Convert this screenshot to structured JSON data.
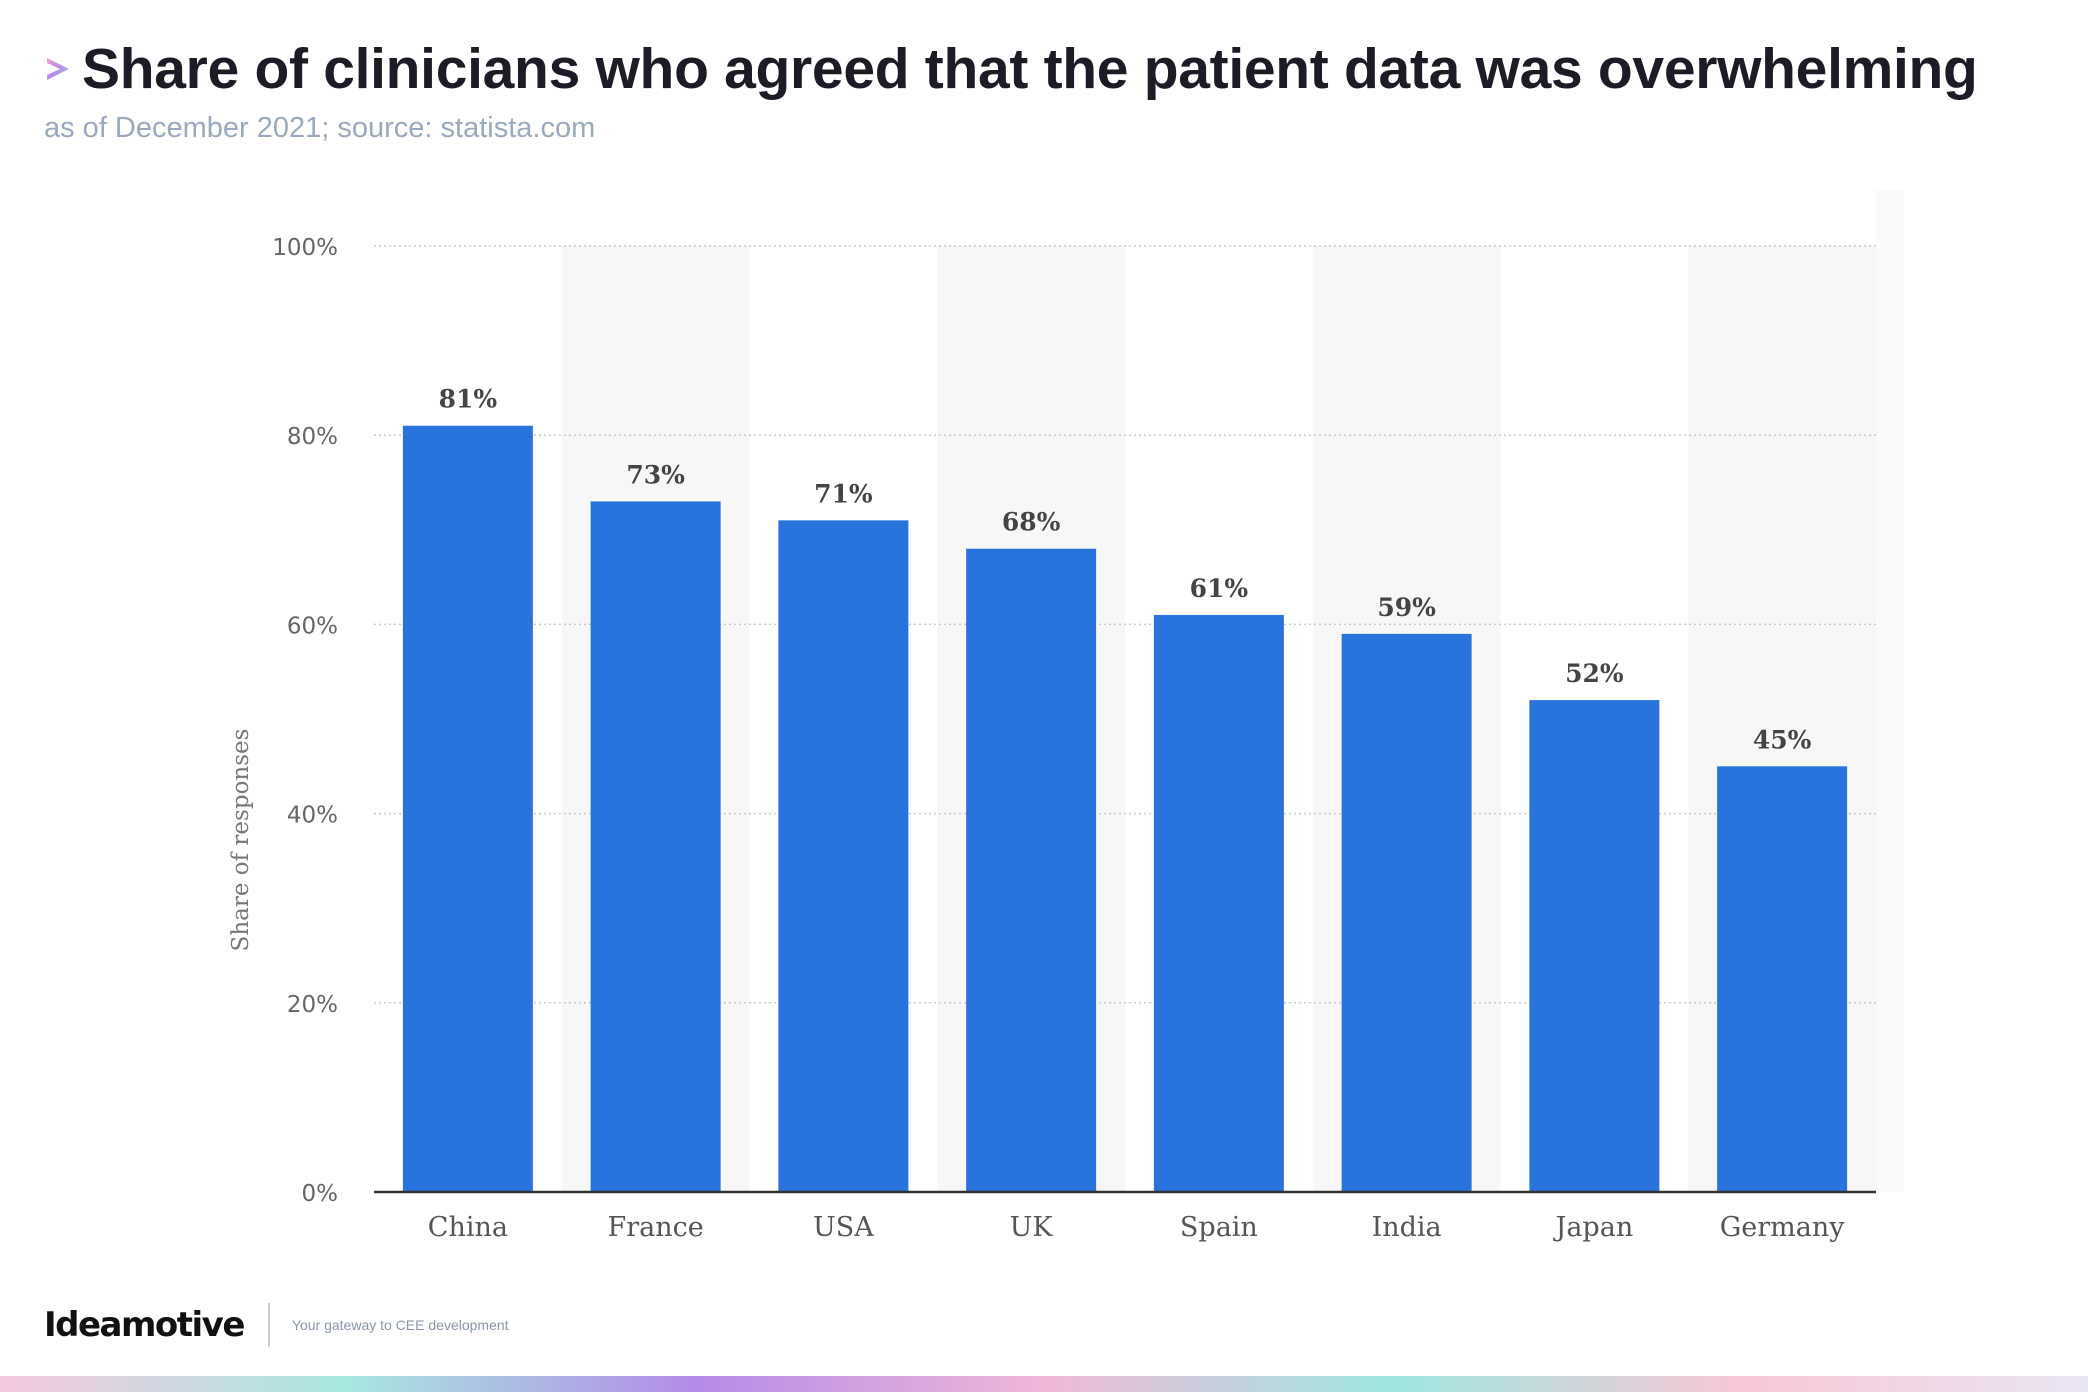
{
  "header": {
    "title": "Share of clinicians who agreed that the patient data was overwhelming",
    "subtitle": "as of December 2021; source: statista.com"
  },
  "footer": {
    "brand": "Ideamotive",
    "tagline": "Your gateway to CEE development"
  },
  "colors": {
    "bar": "#2874dc",
    "title": "#1c1c26",
    "subtitle": "#9aa9bd",
    "axis_text": "#555555",
    "band": "#f7f7f7",
    "gradient": [
      "#f6c8e0",
      "#a7e8e0",
      "#b48be8",
      "#f1b8d8",
      "#9ee7e0",
      "#f8c7d6",
      "#e9e6f4"
    ]
  },
  "icons": {
    "title_mark": "arrow-chevron-icon"
  },
  "chart_data": {
    "type": "bar",
    "categories": [
      "China",
      "France",
      "USA",
      "UK",
      "Spain",
      "India",
      "Japan",
      "Germany"
    ],
    "values": [
      81,
      73,
      71,
      68,
      61,
      59,
      52,
      45
    ],
    "value_labels": [
      "81%",
      "73%",
      "71%",
      "68%",
      "61%",
      "59%",
      "52%",
      "45%"
    ],
    "ylabel": "Share of responses",
    "xlabel": "",
    "ylim": [
      0,
      100
    ],
    "yticks": [
      0,
      20,
      40,
      60,
      80,
      100
    ],
    "ytick_labels": [
      "0%",
      "20%",
      "40%",
      "60%",
      "80%",
      "100%"
    ],
    "grid": true
  }
}
